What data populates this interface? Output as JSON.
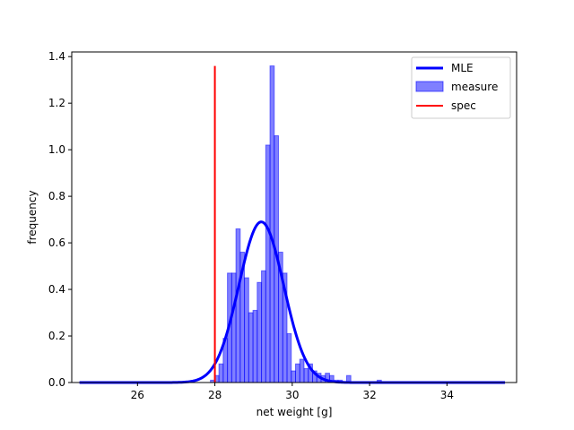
{
  "chart_data": {
    "type": "histogram",
    "title": "",
    "xlabel": "net weight [g]",
    "ylabel": "frequency",
    "xlim": [
      24.3,
      35.8
    ],
    "ylim": [
      0,
      1.42
    ],
    "xticks": [
      26,
      28,
      30,
      32,
      34
    ],
    "yticks": [
      0.0,
      0.2,
      0.4,
      0.6,
      0.8,
      1.0,
      1.2,
      1.4
    ],
    "grid": false,
    "legend": {
      "placement": "top-right",
      "entries": [
        {
          "label": "MLE",
          "kind": "line",
          "color": "#0000ff"
        },
        {
          "label": "measure",
          "kind": "patch",
          "color": "#0000ff"
        },
        {
          "label": "spec",
          "kind": "line",
          "color": "#ff0000"
        }
      ]
    },
    "histogram": {
      "name": "measure",
      "color": "#0000ff",
      "alpha": 0.5,
      "bin_width": 0.11,
      "bins": [
        {
          "x": 27.94,
          "y": 0.01
        },
        {
          "x": 28.05,
          "y": 0.03
        },
        {
          "x": 28.16,
          "y": 0.08
        },
        {
          "x": 28.27,
          "y": 0.19
        },
        {
          "x": 28.38,
          "y": 0.47
        },
        {
          "x": 28.49,
          "y": 0.47
        },
        {
          "x": 28.6,
          "y": 0.66
        },
        {
          "x": 28.71,
          "y": 0.56
        },
        {
          "x": 28.82,
          "y": 0.45
        },
        {
          "x": 28.93,
          "y": 0.3
        },
        {
          "x": 29.04,
          "y": 0.31
        },
        {
          "x": 29.15,
          "y": 0.43
        },
        {
          "x": 29.26,
          "y": 0.48
        },
        {
          "x": 29.37,
          "y": 1.02
        },
        {
          "x": 29.48,
          "y": 1.36
        },
        {
          "x": 29.59,
          "y": 1.06
        },
        {
          "x": 29.7,
          "y": 0.56
        },
        {
          "x": 29.81,
          "y": 0.47
        },
        {
          "x": 29.92,
          "y": 0.21
        },
        {
          "x": 30.03,
          "y": 0.05
        },
        {
          "x": 30.14,
          "y": 0.08
        },
        {
          "x": 30.25,
          "y": 0.1
        },
        {
          "x": 30.36,
          "y": 0.06
        },
        {
          "x": 30.47,
          "y": 0.08
        },
        {
          "x": 30.58,
          "y": 0.05
        },
        {
          "x": 30.69,
          "y": 0.04
        },
        {
          "x": 30.8,
          "y": 0.03
        },
        {
          "x": 30.91,
          "y": 0.04
        },
        {
          "x": 31.02,
          "y": 0.03
        },
        {
          "x": 31.13,
          "y": 0.01
        },
        {
          "x": 31.24,
          "y": 0.01
        },
        {
          "x": 31.46,
          "y": 0.03
        },
        {
          "x": 32.25,
          "y": 0.01
        }
      ]
    },
    "mle_curve": {
      "name": "MLE",
      "color": "#0000ff",
      "x_range": [
        24.5,
        35.5
      ],
      "mean": 29.2,
      "std": 0.578
    },
    "spec_line": {
      "name": "spec",
      "color": "#ff0000",
      "x": 28.0,
      "y_range": [
        0,
        1.36
      ]
    }
  }
}
